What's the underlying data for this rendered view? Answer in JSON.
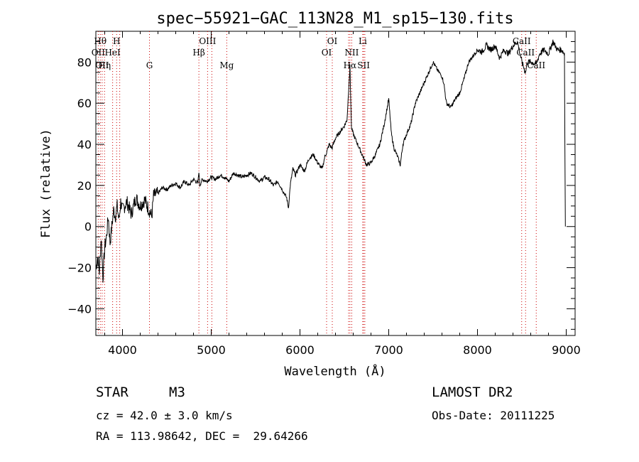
{
  "chart_data": {
    "type": "line",
    "title": "spec−55921−GAC_113N28_M1_sp15−130.fits",
    "xlabel": "Wavelength (Å)",
    "ylabel": "Flux (relative)",
    "xlim": [
      3700,
      9100
    ],
    "ylim": [
      -53,
      95
    ],
    "x_ticks": [
      4000,
      5000,
      6000,
      7000,
      8000,
      9000
    ],
    "y_ticks": [
      -40,
      -20,
      0,
      20,
      40,
      60,
      80
    ],
    "grid": false,
    "legend": "none",
    "line_color": "#000000",
    "marker_color": "#cc0000",
    "series": [
      {
        "x": [
          3700,
          3720,
          3740,
          3760,
          3780,
          3800,
          3820,
          3840,
          3860,
          3880,
          3900,
          3920,
          3940,
          3960,
          3980,
          4000,
          4050,
          4100,
          4150,
          4200,
          4250,
          4300,
          4330,
          4350,
          4400,
          4450,
          4500,
          4550,
          4600,
          4650,
          4700,
          4750,
          4800,
          4850,
          4861,
          4870,
          4900,
          4950,
          5000,
          5050,
          5100,
          5150,
          5200,
          5250,
          5300,
          5350,
          5400,
          5450,
          5500,
          5550,
          5600,
          5650,
          5700,
          5750,
          5800,
          5850,
          5870,
          5890,
          5920,
          5950,
          6000,
          6050,
          6100,
          6150,
          6200,
          6250,
          6280,
          6300,
          6330,
          6360,
          6400,
          6450,
          6500,
          6530,
          6563,
          6580,
          6600,
          6650,
          6700,
          6750,
          6800,
          6850,
          6900,
          6950,
          7000,
          7030,
          7060,
          7100,
          7130,
          7160,
          7200,
          7250,
          7300,
          7350,
          7400,
          7450,
          7500,
          7550,
          7600,
          7620,
          7650,
          7700,
          7750,
          7800,
          7850,
          7900,
          7950,
          8000,
          8050,
          8100,
          8150,
          8200,
          8250,
          8300,
          8350,
          8400,
          8450,
          8500,
          8542,
          8560,
          8600,
          8662,
          8700,
          8750,
          8800,
          8850,
          8900,
          8950,
          8980
        ],
        "y": [
          -20,
          -15,
          -22,
          -5,
          -25,
          -10,
          -5,
          5,
          -8,
          0,
          8,
          5,
          10,
          3,
          12,
          8,
          12,
          6,
          14,
          10,
          13,
          8,
          5,
          15,
          16,
          19,
          18,
          20,
          21,
          19,
          22,
          20,
          23,
          21,
          27,
          20,
          23,
          22,
          24,
          23,
          25,
          24,
          22,
          26,
          25,
          24,
          25,
          26,
          24,
          22,
          24,
          23,
          20,
          22,
          18,
          14,
          9,
          20,
          28,
          25,
          30,
          27,
          33,
          35,
          31,
          28,
          34,
          36,
          40,
          38,
          43,
          46,
          49,
          52,
          78,
          48,
          45,
          40,
          35,
          30,
          31,
          35,
          40,
          50,
          62,
          45,
          38,
          34,
          30,
          40,
          45,
          50,
          60,
          65,
          70,
          75,
          80,
          76,
          73,
          70,
          60,
          58,
          62,
          65,
          72,
          80,
          83,
          86,
          85,
          88,
          86,
          88,
          82,
          86,
          84,
          88,
          90,
          80,
          75,
          80,
          80,
          79,
          84,
          86,
          84,
          90,
          86,
          86,
          84
        ]
      }
    ],
    "lines": [
      {
        "x": 3727,
        "label": "OII",
        "row": 2
      },
      {
        "x": 3750,
        "label": "Hθ",
        "row": 1
      },
      {
        "x": 3771,
        "label": "OII",
        "row": 3
      },
      {
        "x": 3798,
        "label": "Hη",
        "row": 3
      },
      {
        "x": 3889,
        "label": "HeI",
        "row": 2
      },
      {
        "x": 3934,
        "label": "H",
        "row": 1
      },
      {
        "x": 3969,
        "label": "",
        "row": 0
      },
      {
        "x": 4304,
        "label": "G",
        "row": 3
      },
      {
        "x": 4861,
        "label": "Hβ",
        "row": 2
      },
      {
        "x": 4959,
        "label": "OIII",
        "row": 1
      },
      {
        "x": 5007,
        "label": "",
        "row": 0
      },
      {
        "x": 5175,
        "label": "Mg",
        "row": 3
      },
      {
        "x": 6300,
        "label": "OI",
        "row": 2
      },
      {
        "x": 6364,
        "label": "OI",
        "row": 1
      },
      {
        "x": 6548,
        "label": "",
        "row": 0
      },
      {
        "x": 6563,
        "label": "Hα",
        "row": 3
      },
      {
        "x": 6583,
        "label": "NII",
        "row": 2
      },
      {
        "x": 6707,
        "label": "Li",
        "row": 1
      },
      {
        "x": 6717,
        "label": "SII",
        "row": 3
      },
      {
        "x": 6731,
        "label": "",
        "row": 0
      },
      {
        "x": 8498,
        "label": "CaII",
        "row": 1
      },
      {
        "x": 8542,
        "label": "CaII",
        "row": 2
      },
      {
        "x": 8662,
        "label": "CaII",
        "row": 3
      }
    ]
  },
  "info": {
    "object_type": "STAR",
    "subclass": "M3",
    "survey": "LAMOST DR2",
    "cz": "cz = 42.0 ± 3.0 km/s",
    "obs_date": "Obs-Date: 20111225",
    "coords": "RA = 113.98642, DEC =  29.64266"
  }
}
